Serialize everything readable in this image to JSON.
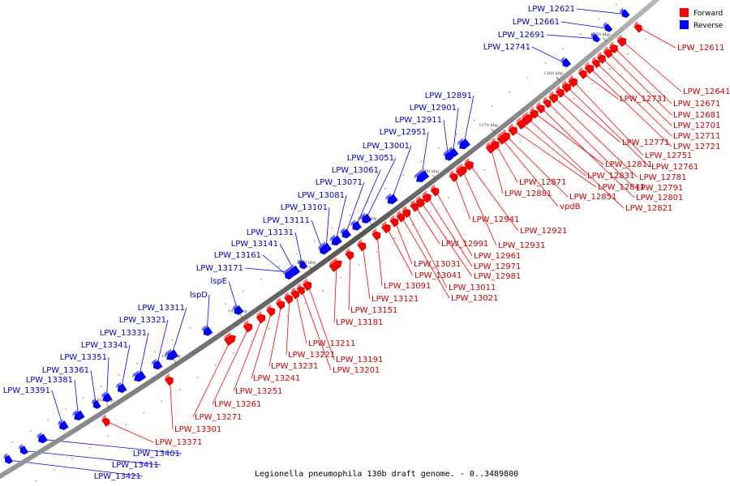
{
  "colors": {
    "forward": "#ff0000",
    "reverse": "#0000ff",
    "forward_label": "#cc0000",
    "reverse_label": "#0000cc",
    "backbone": "#666666"
  },
  "legend": {
    "forward_label": "Forward",
    "reverse_label": "Reverse"
  },
  "caption": "Legionella pneumophila 130b draft genome. - 0..3489800",
  "ticks": [
    "1350 kbp",
    "1360 kbp",
    "1370 kbp",
    "1380 kbp",
    "1390 kbp",
    "1400 kbp",
    "1410 kbp",
    "1420 kbp",
    "1430 kbp"
  ],
  "forward_genes": [
    "LPW_12611",
    "LPW_12641",
    "LPW_12671",
    "LPW_12681",
    "LPW_12701",
    "LPW_12711",
    "LPW_12721",
    "LPW_12731",
    "LPW_12751",
    "LPW_12761",
    "LPW_12771",
    "LPW_12781",
    "LPW_12791",
    "LPW_12801",
    "LPW_12811",
    "LPW_12821",
    "LPW_12831",
    "LPW_12841",
    "LPW_12851",
    "vpdB",
    "LPW_12871",
    "LPW_12881",
    "LPW_12921",
    "LPW_12931",
    "LPW_12941",
    "LPW_12961",
    "LPW_12971",
    "LPW_12981",
    "LPW_12991",
    "LPW_13011",
    "LPW_13021",
    "LPW_13031",
    "LPW_13041",
    "LPW_13091",
    "LPW_13121",
    "LPW_13151",
    "LPW_13181",
    "LPW_13191",
    "LPW_13201",
    "LPW_13211",
    "LPW_13221",
    "LPW_13231",
    "LPW_13241",
    "LPW_13251",
    "LPW_13261",
    "LPW_13271",
    "LPW_13301",
    "LPW_13371"
  ],
  "reverse_genes": [
    "LPW_12621",
    "LPW_12661",
    "LPW_12691",
    "LPW_12741",
    "LPW_12891",
    "LPW_12901",
    "LPW_12911",
    "LPW_12951",
    "LPW_13001",
    "LPW_13051",
    "LPW_13061",
    "LPW_13071",
    "LPW_13081",
    "LPW_13101",
    "LPW_13111",
    "LPW_13131",
    "LPW_13141",
    "LPW_13161",
    "LPW_13171",
    "lspE",
    "lspD",
    "LPW_13311",
    "LPW_13321",
    "LPW_13331",
    "LPW_13341",
    "LPW_13351",
    "LPW_13361",
    "LPW_13381",
    "LPW_13391",
    "LPW_13401",
    "LPW_13411",
    "LPW_13421"
  ]
}
